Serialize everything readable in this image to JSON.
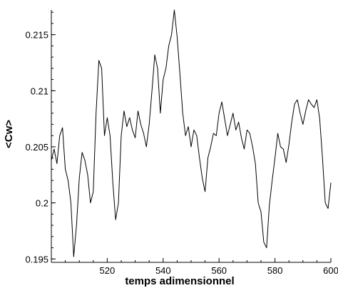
{
  "chart_data": {
    "type": "line",
    "title": "",
    "xlabel": "temps adimensionnel",
    "ylabel": "<Cw>",
    "xlim": [
      500,
      600
    ],
    "ylim": [
      0.1947,
      0.2172
    ],
    "grid": false,
    "legend": "none",
    "xticks": [
      520,
      540,
      560,
      580,
      600
    ],
    "xtick_labels": [
      "520",
      "540",
      "560",
      "580",
      "600"
    ],
    "yticks": [
      0.195,
      0.2,
      0.205,
      0.21,
      0.215
    ],
    "ytick_labels": [
      "0.195",
      "0.2",
      "0.205",
      "0.21",
      "0.215"
    ],
    "series": [
      {
        "color": "#000000",
        "x": [
          500.0,
          501.0,
          502.0,
          503.0,
          504.0,
          505.0,
          506.0,
          507.0,
          508.0,
          509.0,
          510.0,
          511.0,
          512.0,
          513.0,
          514.0,
          515.0,
          516.0,
          517.0,
          518.0,
          519.0,
          520.0,
          521.0,
          522.0,
          523.0,
          524.0,
          525.0,
          526.0,
          527.0,
          528.0,
          529.0,
          530.0,
          531.0,
          532.0,
          533.0,
          534.0,
          535.0,
          536.0,
          537.0,
          538.0,
          539.0,
          540.0,
          541.0,
          542.0,
          543.0,
          544.0,
          545.0,
          546.0,
          547.0,
          548.0,
          549.0,
          550.0,
          551.0,
          552.0,
          553.0,
          554.0,
          555.0,
          556.0,
          557.0,
          558.0,
          559.0,
          560.0,
          561.0,
          562.0,
          563.0,
          564.0,
          565.0,
          566.0,
          567.0,
          568.0,
          569.0,
          570.0,
          571.0,
          572.0,
          573.0,
          574.0,
          575.0,
          576.0,
          577.0,
          578.0,
          579.0,
          580.0,
          581.0,
          582.0,
          583.0,
          584.0,
          585.0,
          586.0,
          587.0,
          588.0,
          589.0,
          590.0,
          591.0,
          592.0,
          593.0,
          594.0,
          595.0,
          596.0,
          597.0,
          598.0,
          599.0,
          600.0
        ],
        "y": [
          0.2038,
          0.2048,
          0.2035,
          0.206,
          0.2067,
          0.203,
          0.202,
          0.2,
          0.1952,
          0.198,
          0.2022,
          0.2045,
          0.2038,
          0.2025,
          0.2,
          0.201,
          0.208,
          0.2127,
          0.212,
          0.206,
          0.2076,
          0.206,
          0.2018,
          0.1985,
          0.2,
          0.206,
          0.2082,
          0.2068,
          0.2076,
          0.2065,
          0.2058,
          0.2082,
          0.207,
          0.2062,
          0.205,
          0.207,
          0.21,
          0.2132,
          0.212,
          0.208,
          0.211,
          0.212,
          0.214,
          0.215,
          0.2172,
          0.2148,
          0.2115,
          0.208,
          0.206,
          0.2068,
          0.205,
          0.2065,
          0.206,
          0.204,
          0.2022,
          0.201,
          0.204,
          0.205,
          0.2062,
          0.206,
          0.208,
          0.209,
          0.2075,
          0.206,
          0.207,
          0.208,
          0.2065,
          0.2072,
          0.2058,
          0.2048,
          0.2065,
          0.2062,
          0.205,
          0.2035,
          0.2,
          0.1992,
          0.1965,
          0.196,
          0.1998,
          0.202,
          0.204,
          0.2062,
          0.205,
          0.2048,
          0.2036,
          0.2052,
          0.2072,
          0.2088,
          0.2092,
          0.208,
          0.207,
          0.2082,
          0.2092,
          0.2088,
          0.2085,
          0.2092,
          0.2075,
          0.204,
          0.2,
          0.1995,
          0.2018
        ]
      }
    ]
  }
}
